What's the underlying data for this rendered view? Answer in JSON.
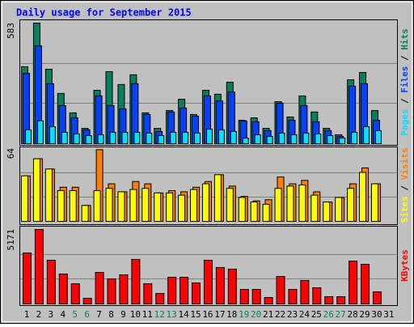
{
  "chart_data": {
    "type": "bar",
    "title": "Daily usage for September 2015",
    "categories": [
      "1",
      "2",
      "3",
      "4",
      "5",
      "6",
      "7",
      "8",
      "9",
      "10",
      "11",
      "12",
      "13",
      "14",
      "15",
      "16",
      "17",
      "18",
      "19",
      "20",
      "21",
      "22",
      "23",
      "24",
      "25",
      "26",
      "27",
      "28",
      "29",
      "30",
      "31"
    ],
    "category_colors": [
      "#000",
      "#000",
      "#000",
      "#000",
      "#00805c",
      "#00805c",
      "#000",
      "#000",
      "#000",
      "#000",
      "#000",
      "#00805c",
      "#00805c",
      "#000",
      "#000",
      "#000",
      "#000",
      "#000",
      "#00805c",
      "#00805c",
      "#000",
      "#000",
      "#000",
      "#000",
      "#000",
      "#00805c",
      "#00805c",
      "#000",
      "#000",
      "#000",
      "#000"
    ],
    "panels": [
      {
        "ylim": [
          0,
          583
        ],
        "yticks": [
          583
        ],
        "series": [
          {
            "name": "Hits",
            "color": "#00805c",
            "values": [
              372,
              583,
              360,
              243,
              149,
              74,
              258,
              348,
              286,
              333,
              149,
              74,
              160,
              215,
              141,
              258,
              239,
              297,
              113,
              125,
              74,
              203,
              129,
              231,
              153,
              74,
              43,
              309,
              344,
              160,
              null
            ]
          },
          {
            "name": "Files",
            "color": "#0040ff",
            "values": [
              340,
              473,
              290,
              184,
              125,
              67,
              231,
              184,
              168,
              290,
              141,
              59,
              153,
              172,
              133,
              231,
              207,
              250,
              110,
              106,
              63,
              196,
              113,
              184,
              106,
              63,
              35,
              278,
              290,
              113,
              null
            ]
          },
          {
            "name": "Pages",
            "color": "#00e0ff",
            "values": [
              67,
              110,
              82,
              55,
              47,
              39,
              43,
              55,
              55,
              55,
              51,
              39,
              55,
              55,
              51,
              70,
              67,
              59,
              27,
              43,
              35,
              51,
              43,
              51,
              47,
              39,
              27,
              55,
              82,
              63,
              null
            ]
          }
        ]
      },
      {
        "ylim": [
          0,
          64
        ],
        "yticks": [
          64
        ],
        "series": [
          {
            "name": "Visits",
            "color": "#ff8000",
            "values": [
              40,
              55,
              46,
              30,
              30,
              14,
              63,
              33,
              26,
              35,
              33,
              25,
              27,
              26,
              30,
              35,
              41,
              31,
              22,
              18,
              19,
              39,
              33,
              36,
              26,
              17,
              21,
              33,
              47,
              33,
              null
            ]
          },
          {
            "name": "Sites",
            "color": "#ffff00",
            "values": [
              40,
              55,
              46,
              27,
              27,
              14,
              27,
              29,
              26,
              28,
              29,
              25,
              25,
              23,
              28,
              33,
              41,
              29,
              21,
              17,
              15,
              29,
              31,
              32,
              23,
              17,
              21,
              29,
              43,
              33,
              null
            ]
          }
        ]
      },
      {
        "ylim": [
          0,
          5171
        ],
        "yticks": [
          5171
        ],
        "series": [
          {
            "name": "KBytes",
            "color": "#ff0000",
            "values": [
              3541,
              5171,
              3035,
              2079,
              1405,
              393,
              2192,
              1742,
              2023,
              3091,
              1405,
              731,
              1855,
              1855,
              1461,
              3035,
              2529,
              2417,
              1012,
              1012,
              450,
              1911,
              1012,
              1630,
              1124,
              506,
              506,
              2979,
              2754,
              843,
              null
            ]
          }
        ]
      }
    ]
  }
}
